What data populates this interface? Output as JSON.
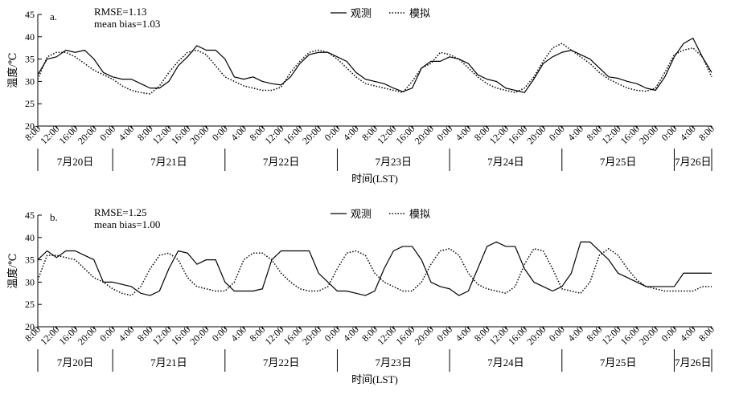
{
  "chart_data": [
    {
      "type": "line",
      "panel_label": "a.",
      "annotations": [
        "RMSE=1.13",
        "mean bias=1.03"
      ],
      "ylabel": "温度/℃",
      "xlabel": "时间(LST)",
      "ylim": [
        20,
        45
      ],
      "yticks": [
        20,
        25,
        30,
        35,
        40,
        45
      ],
      "xlim_hours": [
        0,
        144
      ],
      "x_tick_labels": [
        "8:00",
        "12:00",
        "16:00",
        "20:00",
        "0:00",
        "4:00",
        "8:00",
        "12:00",
        "16:00",
        "20:00",
        "0:00",
        "4:00",
        "8:00",
        "12:00",
        "16:00",
        "20:00",
        "0:00",
        "4:00",
        "8:00",
        "12:00",
        "16:00",
        "20:00",
        "0:00",
        "4:00",
        "8:00",
        "12:00",
        "16:00",
        "20:00",
        "0:00",
        "4:00",
        "8:00",
        "12:00",
        "16:00",
        "20:00",
        "0:00",
        "4:00",
        "8:00"
      ],
      "day_labels": [
        "7月20日",
        "7月21日",
        "7月22日",
        "7月23日",
        "7月24日",
        "7月25日",
        "7月26日"
      ],
      "legend": [
        "观测",
        "模拟"
      ],
      "grid": false,
      "series": [
        {
          "name": "观测",
          "style": "solid",
          "x": [
            0,
            2,
            4,
            6,
            8,
            10,
            12,
            14,
            16,
            18,
            20,
            22,
            24,
            26,
            28,
            30,
            32,
            34,
            36,
            38,
            40,
            42,
            44,
            46,
            48,
            50,
            52,
            54,
            56,
            58,
            60,
            62,
            64,
            66,
            68,
            70,
            72,
            74,
            76,
            78,
            80,
            82,
            84,
            86,
            88,
            90,
            92,
            94,
            96,
            98,
            100,
            102,
            104,
            106,
            108,
            110,
            112,
            114,
            116,
            118,
            120,
            122,
            124,
            126,
            128,
            130,
            132,
            134,
            136,
            138,
            140,
            142,
            144
          ],
          "y": [
            31.5,
            35,
            35.5,
            37,
            36.5,
            37,
            35,
            32,
            31,
            30.5,
            30.5,
            29.5,
            28.5,
            28.5,
            30,
            33.5,
            35.5,
            38,
            37,
            37,
            35,
            31,
            30.5,
            31,
            30,
            29.5,
            29.2,
            31,
            34,
            36,
            36.5,
            36.5,
            35.5,
            34.5,
            32,
            30.5,
            30,
            29.5,
            28.5,
            27.7,
            28.5,
            33,
            34.5,
            34.5,
            35.5,
            35,
            34,
            31.5,
            30.5,
            30,
            28.5,
            28,
            27.5,
            30.5,
            34,
            35.5,
            36.5,
            37,
            36,
            35,
            33,
            31,
            30.7,
            30,
            29.5,
            28.5,
            28,
            31,
            35.5,
            38.5,
            39.7,
            35.5,
            32
          ]
        },
        {
          "name": "模拟",
          "style": "dotted",
          "x": [
            0,
            2,
            4,
            6,
            8,
            10,
            12,
            14,
            16,
            18,
            20,
            22,
            24,
            26,
            28,
            30,
            32,
            34,
            36,
            38,
            40,
            42,
            44,
            46,
            48,
            50,
            52,
            54,
            56,
            58,
            60,
            62,
            64,
            66,
            68,
            70,
            72,
            74,
            76,
            78,
            80,
            82,
            84,
            86,
            88,
            90,
            92,
            94,
            96,
            98,
            100,
            102,
            104,
            106,
            108,
            110,
            112,
            114,
            116,
            118,
            120,
            122,
            124,
            126,
            128,
            130,
            132,
            134,
            136,
            138,
            140,
            142,
            144
          ],
          "y": [
            30.5,
            35.5,
            36.5,
            36.5,
            35.5,
            34,
            32.5,
            31.5,
            30.5,
            29,
            28,
            27.5,
            27.2,
            29,
            32,
            34.5,
            36.5,
            37,
            36,
            33.5,
            31,
            30,
            29,
            28.5,
            28,
            28,
            28.7,
            32,
            34.5,
            36.5,
            37,
            36.5,
            35,
            33,
            31,
            29.5,
            29,
            28.5,
            28,
            27.5,
            30,
            33,
            34,
            36.5,
            36,
            35,
            33,
            31,
            29.5,
            28.5,
            28,
            27.5,
            28.5,
            31,
            34.5,
            37.5,
            38.5,
            37,
            35.5,
            34,
            32,
            30.5,
            29.5,
            28.5,
            28,
            27.8,
            28.5,
            32,
            36,
            37,
            37.5,
            35.5,
            31
          ]
        }
      ]
    },
    {
      "type": "line",
      "panel_label": "b.",
      "annotations": [
        "RMSE=1.25",
        "mean bias=1.00"
      ],
      "ylabel": "温度/℃",
      "xlabel": "时间(LST)",
      "ylim": [
        20,
        45
      ],
      "yticks": [
        20,
        25,
        30,
        35,
        40,
        45
      ],
      "xlim_hours": [
        0,
        144
      ],
      "x_tick_labels": [
        "8:00",
        "12:00",
        "16:00",
        "20:00",
        "0:00",
        "4:00",
        "8:00",
        "12:00",
        "16:00",
        "20:00",
        "0:00",
        "4:00",
        "8:00",
        "12:00",
        "16:00",
        "20:00",
        "0:00",
        "4:00",
        "8:00",
        "12:00",
        "16:00",
        "20:00",
        "0:00",
        "4:00",
        "8:00",
        "12:00",
        "16:00",
        "20:00",
        "0:00",
        "4:00",
        "8:00",
        "12:00",
        "16:00",
        "20:00",
        "0:00",
        "4:00",
        "8:00"
      ],
      "day_labels": [
        "7月20日",
        "7月21日",
        "7月22日",
        "7月23日",
        "7月24日",
        "7月25日",
        "7月26日"
      ],
      "legend": [
        "观测",
        "模拟"
      ],
      "grid": false,
      "series": [
        {
          "name": "观测",
          "style": "solid",
          "x": [
            0,
            2,
            4,
            6,
            8,
            10,
            12,
            14,
            16,
            18,
            20,
            22,
            24,
            26,
            28,
            30,
            32,
            34,
            36,
            38,
            40,
            42,
            44,
            46,
            48,
            50,
            52,
            54,
            56,
            58,
            60,
            62,
            64,
            66,
            68,
            70,
            72,
            74,
            76,
            78,
            80,
            82,
            84,
            86,
            88,
            90,
            92,
            94,
            96,
            98,
            100,
            102,
            104,
            106,
            108,
            110,
            112,
            114,
            116,
            118,
            120,
            122,
            124,
            126,
            128,
            130,
            132,
            134,
            136,
            138,
            140,
            142,
            144
          ],
          "y": [
            35,
            37,
            35.5,
            37,
            37,
            36,
            35,
            30,
            30,
            29.5,
            29,
            27.5,
            27,
            28,
            33,
            37,
            36.5,
            34,
            35,
            35,
            30,
            28,
            28,
            28,
            28.5,
            35,
            37,
            37,
            37,
            37,
            32,
            30,
            28,
            28,
            27.5,
            27,
            28,
            33,
            37,
            38,
            38,
            35,
            30,
            29,
            28.5,
            27,
            28,
            33,
            38,
            39,
            38,
            38,
            33,
            30,
            29,
            28,
            29,
            32,
            39,
            39,
            37,
            35,
            32,
            31,
            30,
            29,
            29,
            29,
            29,
            32,
            32,
            32,
            32
          ]
        },
        {
          "name": "模拟",
          "style": "dotted",
          "x": [
            0,
            2,
            4,
            6,
            8,
            10,
            12,
            14,
            16,
            18,
            20,
            22,
            24,
            26,
            28,
            30,
            32,
            34,
            36,
            38,
            40,
            42,
            44,
            46,
            48,
            50,
            52,
            54,
            56,
            58,
            60,
            62,
            64,
            66,
            68,
            70,
            72,
            74,
            76,
            78,
            80,
            82,
            84,
            86,
            88,
            90,
            92,
            94,
            96,
            98,
            100,
            102,
            104,
            106,
            108,
            110,
            112,
            114,
            116,
            118,
            120,
            122,
            124,
            126,
            128,
            130,
            132,
            134,
            136,
            138,
            140,
            142,
            144
          ],
          "y": [
            30.5,
            36,
            36,
            35.5,
            35,
            33,
            31,
            30,
            28.5,
            27.5,
            27,
            29,
            33,
            36,
            36.5,
            35,
            31,
            29,
            28.5,
            28,
            28,
            30,
            35,
            36.5,
            36.5,
            35,
            32,
            30,
            28.5,
            28,
            28,
            29,
            33,
            36.5,
            37,
            36,
            32,
            30,
            29,
            28,
            28,
            30,
            34,
            37,
            37.5,
            36,
            32,
            29.5,
            28.5,
            28,
            27.5,
            29,
            34,
            37.5,
            37,
            33,
            28.5,
            28,
            27.5,
            30,
            36,
            37.5,
            36,
            33,
            30.5,
            29,
            28.5,
            28,
            28,
            28,
            28,
            29,
            29
          ]
        }
      ]
    }
  ]
}
